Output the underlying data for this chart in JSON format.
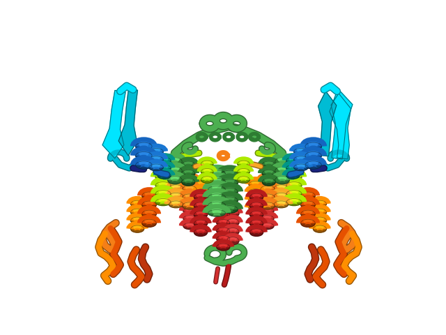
{
  "background_color": "#ffffff",
  "figsize": [
    6.4,
    4.8
  ],
  "dpi": 100,
  "colors": {
    "cyan_bright": "#00E5FF",
    "cyan": "#00BCD4",
    "teal": "#009688",
    "blue_dark": "#1A237E",
    "blue": "#1565C0",
    "blue_med": "#1976D2",
    "green_bright": "#4CAF50",
    "green": "#2E7D32",
    "green_lime": "#8BC34A",
    "yellow_green": "#AEEA00",
    "yellow": "#F9A825",
    "gold": "#F57F17",
    "orange_light": "#FF8F00",
    "orange": "#E65100",
    "orange_dark": "#BF360C",
    "red": "#B71C1C",
    "red_bright": "#D32F2F"
  }
}
